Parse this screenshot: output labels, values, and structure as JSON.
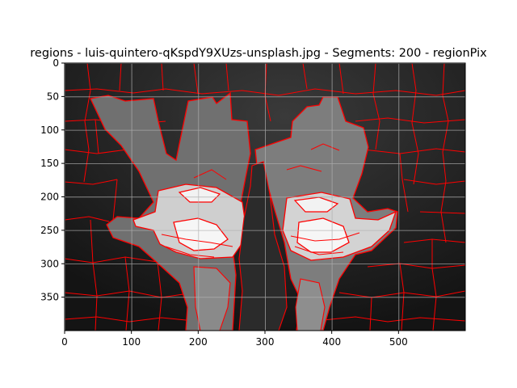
{
  "chart_data": {
    "type": "image",
    "title": "regions - luis-quintero-qKspdY9XUzs-unsplash.jpg - Segments: 200 - regionPix",
    "xlabel": "",
    "ylabel": "",
    "xlim": [
      0,
      600
    ],
    "ylim": [
      400,
      0
    ],
    "x_ticks": [
      0,
      100,
      200,
      300,
      400,
      500
    ],
    "y_ticks": [
      0,
      50,
      100,
      150,
      200,
      250,
      300,
      350
    ],
    "grid": true,
    "image_description_note": "",
    "colors": {
      "background_dark": "#1c1c1c",
      "hands_gray": "#6b6b6b",
      "hands_light": "#cfcfcf",
      "highlight": "#f4f4f4",
      "boundary": "#ff0000",
      "grid": "#b0b0b0"
    }
  }
}
